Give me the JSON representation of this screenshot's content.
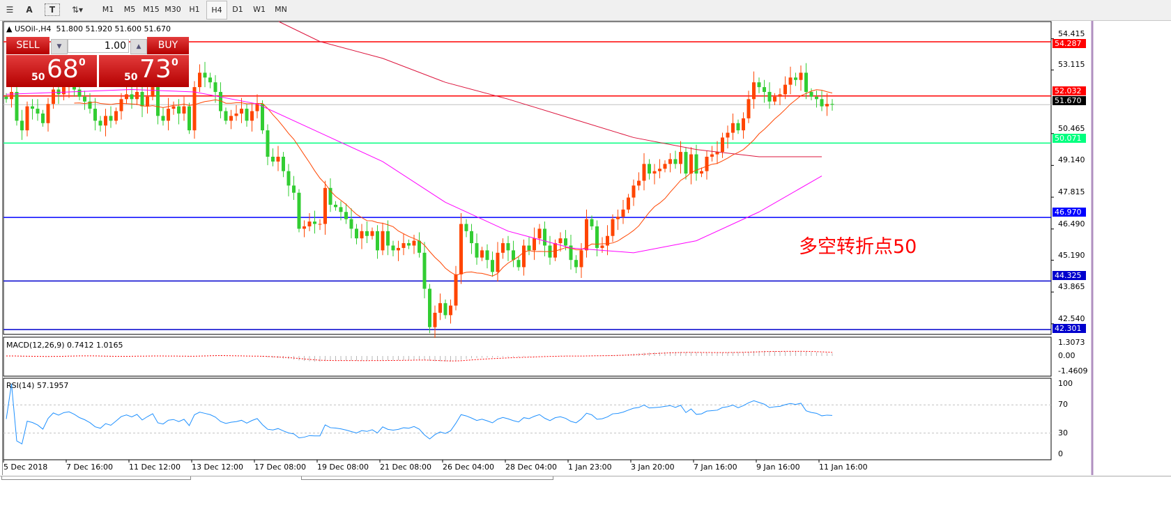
{
  "toolbar": {
    "tools": [
      "A",
      "T"
    ],
    "timeframes": [
      "M1",
      "M5",
      "M15",
      "M30",
      "H1",
      "H4",
      "D1",
      "W1",
      "MN"
    ],
    "active": "H4"
  },
  "symbol_header": {
    "symbol": "USOil-,H4",
    "ohlc": "51.800 51.920 51.600 51.670"
  },
  "trade_panel": {
    "sell_label": "SELL",
    "buy_label": "BUY",
    "lot": "1.00",
    "sell_prefix": "50",
    "sell_big": "68",
    "sell_sup": "0",
    "buy_prefix": "50",
    "buy_big": "73",
    "buy_sup": "0"
  },
  "annotation": "多空转折点50",
  "price_axis": [
    "54.415",
    "53.115",
    "50.465",
    "49.140",
    "47.815",
    "46.490",
    "45.190",
    "43.865",
    "42.540"
  ],
  "levels": [
    {
      "value": "54.287",
      "color": "#ff0000"
    },
    {
      "value": "52.032",
      "color": "#ff0000"
    },
    {
      "value": "51.670",
      "color": "#000000",
      "current": true
    },
    {
      "value": "50.071",
      "color": "#00ff7f"
    },
    {
      "value": "46.970",
      "color": "#0000ff"
    },
    {
      "value": "44.325",
      "color": "#0000cd"
    },
    {
      "value": "42.301",
      "color": "#0000cd"
    }
  ],
  "macd": {
    "label": "MACD(12,26,9) 0.7412 1.0165",
    "axis": [
      "1.3073",
      "0.00",
      "-1.4609"
    ]
  },
  "rsi": {
    "label": "RSI(14) 57.1957",
    "axis": [
      "100",
      "70",
      "30",
      "0"
    ]
  },
  "time_axis": [
    "5 Dec 2018",
    "7 Dec 16:00",
    "11 Dec 12:00",
    "13 Dec 12:00",
    "17 Dec 08:00",
    "19 Dec 08:00",
    "21 Dec 08:00",
    "26 Dec 04:00",
    "28 Dec 04:00",
    "1 Jan 23:00",
    "3 Jan 20:00",
    "7 Jan 16:00",
    "9 Jan 16:00",
    "11 Jan 16:00"
  ],
  "chart_data": {
    "type": "candlestick",
    "timeframe": "H4",
    "ylim": [
      42.1,
      55.13
    ],
    "up_color": "#ff4500",
    "down_color": "#32cd32",
    "closes": [
      51.9,
      52.2,
      51.0,
      50.6,
      51.6,
      51.5,
      51.3,
      50.9,
      51.7,
      52.3,
      52.1,
      52.4,
      52.5,
      52.3,
      52.0,
      51.8,
      51.5,
      51.0,
      50.8,
      51.2,
      51.0,
      51.4,
      51.9,
      52.1,
      51.9,
      52.2,
      51.6,
      52.0,
      52.4,
      51.2,
      51.0,
      51.5,
      51.6,
      51.3,
      51.6,
      50.6,
      52.4,
      53.0,
      52.8,
      52.6,
      52.2,
      51.4,
      51.0,
      51.2,
      51.3,
      51.5,
      51.0,
      51.4,
      51.7,
      50.6,
      49.5,
      49.3,
      49.5,
      48.9,
      48.3,
      48.0,
      46.5,
      46.6,
      46.8,
      46.7,
      46.7,
      48.2,
      47.5,
      47.4,
      47.2,
      46.9,
      46.5,
      46.1,
      46.4,
      46.2,
      46.4,
      45.6,
      46.4,
      45.8,
      45.6,
      45.7,
      45.9,
      45.8,
      46.0,
      45.5,
      44.0,
      42.4,
      43.0,
      43.4,
      42.9,
      43.3,
      44.6,
      46.7,
      46.4,
      45.9,
      45.3,
      45.6,
      45.2,
      44.7,
      45.5,
      45.9,
      45.6,
      45.2,
      44.9,
      45.8,
      45.6,
      46.1,
      46.5,
      45.8,
      45.3,
      45.9,
      46.1,
      45.8,
      45.2,
      44.9,
      45.6,
      46.9,
      46.6,
      45.7,
      45.8,
      46.2,
      46.9,
      47.0,
      47.3,
      47.8,
      48.3,
      48.5,
      49.2,
      48.8,
      48.9,
      49.0,
      49.2,
      49.4,
      49.2,
      49.7,
      48.8,
      49.6,
      48.8,
      48.9,
      49.5,
      49.6,
      49.7,
      50.3,
      50.5,
      50.9,
      50.6,
      51.1,
      51.9,
      52.6,
      52.4,
      52.2,
      51.8,
      52.0,
      52.1,
      52.5,
      52.8,
      52.7,
      53.0,
      52.2,
      52.0,
      51.9,
      51.6,
      51.7,
      51.67
    ],
    "ma_magenta_at_ticks": [
      52.1,
      52.2,
      52.3,
      52.2,
      51.7,
      50.5,
      49.3,
      47.6,
      46.4,
      45.7,
      45.5,
      46.0,
      47.2,
      48.7
    ],
    "ma_red_at_ticks": [
      null,
      null,
      null,
      null,
      55.1,
      54.3,
      53.6,
      52.6,
      51.9,
      51.1,
      50.3,
      49.8,
      49.5,
      49.5
    ],
    "ma_orange_color": "#ff4500",
    "ma_magenta_color": "#ff00ff",
    "ma_red_color": "#dc143c"
  }
}
